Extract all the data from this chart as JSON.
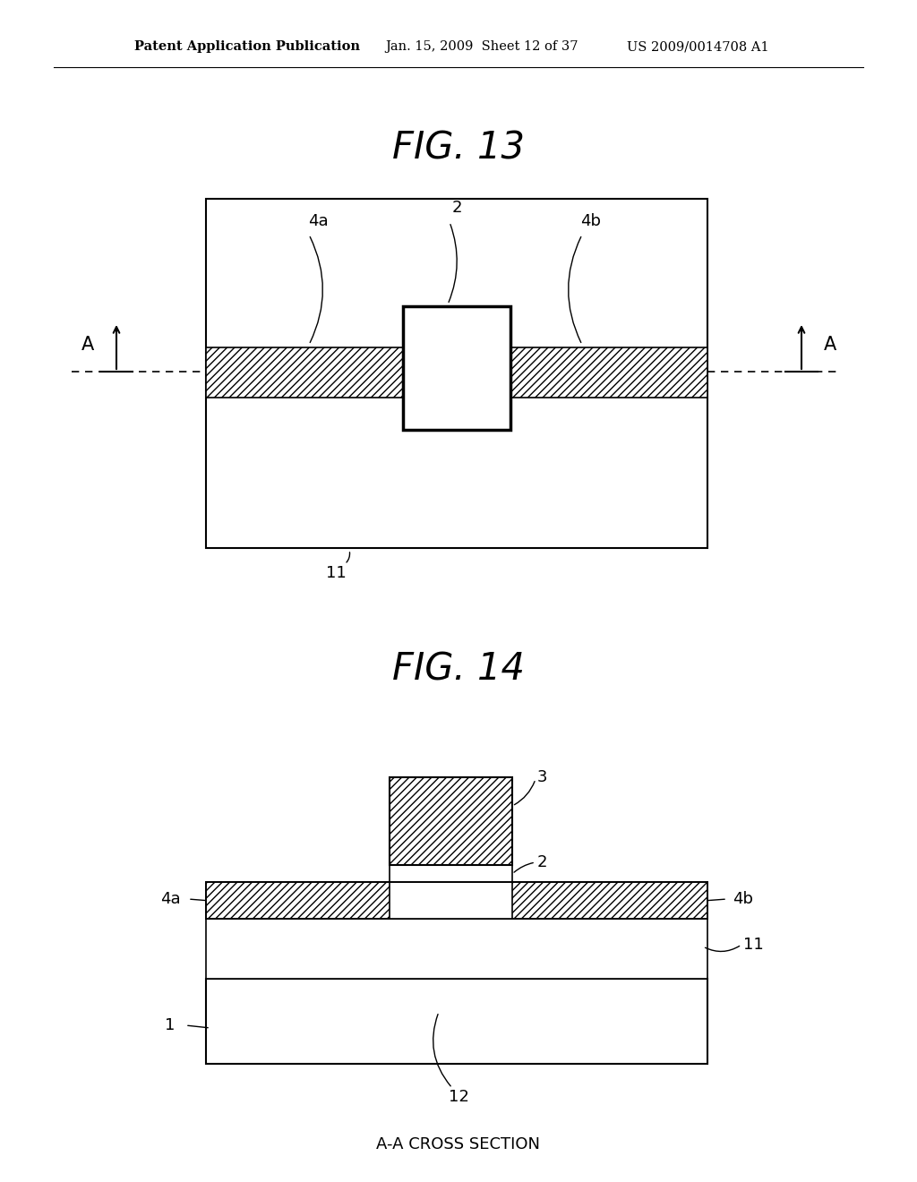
{
  "bg_color": "#ffffff",
  "header_left": "Patent Application Publication",
  "header_mid": "Jan. 15, 2009  Sheet 12 of 37",
  "header_right": "US 2009/0014708 A1",
  "fig13_title": "FIG. 13",
  "fig14_title": "FIG. 14",
  "footer_text": "A-A CROSS SECTION"
}
